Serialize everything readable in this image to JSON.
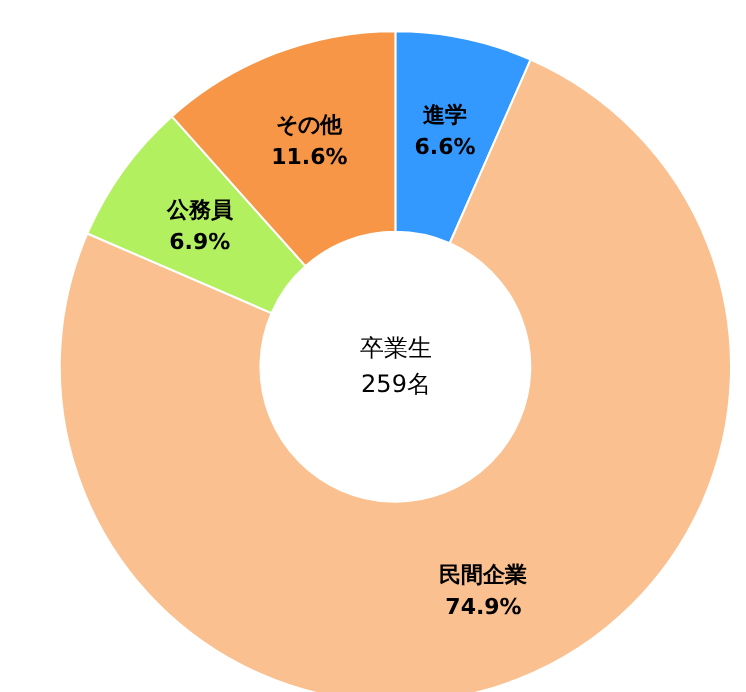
{
  "chart_data": {
    "type": "donut",
    "categories": [
      "進学",
      "民間企業",
      "公務員",
      "その他"
    ],
    "values": [
      6.6,
      74.9,
      6.9,
      11.6
    ],
    "value_labels": [
      "6.6%",
      "74.9%",
      "6.9%",
      "11.6%"
    ],
    "colors": [
      "#3399ff",
      "#fac090",
      "#b3f060",
      "#f79646"
    ],
    "annotations": [
      "卒業生\n259名"
    ],
    "legend": false
  }
}
